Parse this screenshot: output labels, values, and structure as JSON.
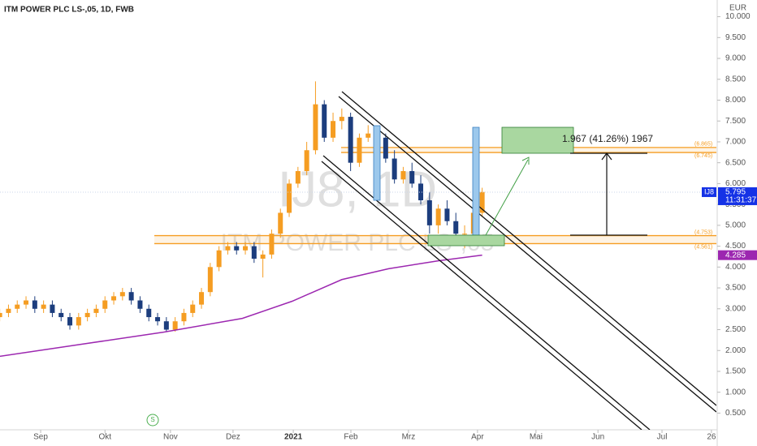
{
  "chart_data": {
    "type": "candlestick",
    "title": "ITM POWER PLC LS-,05, 1D, FWB",
    "currency": "EUR",
    "watermark": [
      "IJ8, 1D",
      "ITM POWER PLC LS-,05"
    ],
    "x": [
      -14,
      -11,
      -8,
      -5,
      -2,
      1,
      4,
      7,
      10,
      13,
      16,
      19,
      22,
      25,
      28,
      31,
      34,
      37,
      40,
      43,
      46,
      49,
      52,
      55,
      58,
      61,
      64,
      67,
      70,
      73,
      76,
      79,
      82,
      85,
      88,
      91,
      94,
      97,
      100,
      103,
      106,
      109,
      112,
      115,
      118,
      121,
      124,
      127,
      130,
      133,
      136,
      139,
      142,
      145,
      148,
      151
    ],
    "open": [
      2.8,
      2.9,
      3.0,
      3.1,
      3.2,
      3.0,
      3.1,
      2.9,
      2.8,
      2.6,
      2.8,
      2.9,
      3.0,
      3.2,
      3.3,
      3.4,
      3.2,
      3.0,
      2.8,
      2.7,
      2.5,
      2.7,
      2.9,
      3.1,
      3.4,
      4.0,
      4.4,
      4.5,
      4.4,
      4.5,
      4.2,
      4.3,
      4.8,
      5.3,
      6.0,
      6.3,
      6.8,
      7.9,
      7.1,
      7.5,
      7.6,
      6.5,
      7.1,
      7.2,
      7.1,
      6.6,
      6.1,
      6.3,
      6.0,
      5.6,
      5.0,
      5.4,
      5.1,
      4.8,
      4.8,
      5.3
    ],
    "high": [
      3.0,
      3.1,
      3.2,
      3.3,
      3.3,
      3.2,
      3.2,
      3.0,
      2.9,
      2.9,
      3.0,
      3.1,
      3.3,
      3.4,
      3.5,
      3.5,
      3.3,
      3.1,
      2.9,
      2.8,
      2.8,
      3.0,
      3.2,
      3.5,
      4.1,
      4.5,
      4.6,
      4.6,
      4.6,
      4.6,
      4.4,
      4.9,
      5.4,
      6.1,
      6.4,
      7.0,
      8.45,
      8.0,
      7.7,
      7.8,
      7.7,
      7.2,
      7.4,
      7.3,
      7.2,
      6.8,
      6.4,
      6.5,
      6.2,
      5.8,
      5.5,
      5.6,
      5.3,
      5.0,
      5.4,
      5.9
    ],
    "low": [
      2.7,
      2.8,
      2.9,
      3.0,
      2.9,
      2.9,
      2.8,
      2.7,
      2.5,
      2.5,
      2.7,
      2.8,
      2.9,
      3.1,
      3.2,
      3.1,
      2.9,
      2.7,
      2.6,
      2.45,
      2.45,
      2.6,
      2.8,
      3.0,
      3.3,
      3.9,
      4.3,
      4.3,
      4.3,
      4.1,
      3.75,
      4.2,
      4.7,
      5.2,
      5.9,
      6.2,
      6.7,
      7.0,
      7.0,
      7.3,
      6.3,
      6.4,
      7.0,
      6.9,
      6.5,
      6.0,
      6.0,
      5.9,
      5.5,
      4.8,
      4.8,
      5.0,
      4.7,
      4.45,
      4.7,
      5.2
    ],
    "close": [
      2.9,
      3.0,
      3.1,
      3.2,
      3.0,
      3.1,
      2.9,
      2.8,
      2.6,
      2.8,
      2.9,
      3.0,
      3.2,
      3.3,
      3.4,
      3.2,
      3.0,
      2.8,
      2.7,
      2.5,
      2.7,
      2.9,
      3.1,
      3.4,
      4.0,
      4.4,
      4.5,
      4.4,
      4.5,
      4.2,
      4.3,
      4.8,
      5.3,
      6.0,
      6.3,
      6.8,
      7.9,
      7.1,
      7.5,
      7.6,
      6.5,
      7.1,
      7.2,
      7.1,
      6.6,
      6.1,
      6.3,
      6.0,
      5.6,
      5.0,
      5.4,
      5.1,
      4.8,
      4.8,
      5.3,
      5.8
    ],
    "up_color": "#f59d22",
    "down_color": "#1c3d7d",
    "moving_average": {
      "color": "#9c27b0",
      "x": [
        -14,
        14,
        42,
        69,
        86,
        103,
        119,
        136,
        151
      ],
      "values": [
        1.86,
        2.15,
        2.44,
        2.77,
        3.18,
        3.7,
        3.96,
        4.15,
        4.285
      ]
    },
    "levels": [
      {
        "value": 6.865,
        "label": "(6.865)"
      },
      {
        "value": 6.745,
        "label": "(6.745)"
      },
      {
        "value": 4.753,
        "label": "(4.753)"
      },
      {
        "value": 4.561,
        "label": "(4.561)"
      }
    ],
    "level_color": "#f59d22",
    "last_price": {
      "symbol": "IJ8",
      "value": 5.795,
      "time": "11:31:37"
    },
    "ma_price": 4.285,
    "measure_label": "1.967 (41.26%) 1967",
    "logo": "S",
    "xlim": [
      -13.9,
      231.1
    ],
    "ylim": [
      0.1,
      10.4
    ],
    "xticks": [
      {
        "value": 0,
        "label": "Sep"
      },
      {
        "value": 22,
        "label": "Okt"
      },
      {
        "value": 44.4,
        "label": "Nov"
      },
      {
        "value": 65.8,
        "label": "Dez"
      },
      {
        "value": 86.4,
        "label": "2021"
      },
      {
        "value": 106.1,
        "label": "Feb"
      },
      {
        "value": 125.8,
        "label": "Mrz"
      },
      {
        "value": 149.4,
        "label": "Apr"
      },
      {
        "value": 169.4,
        "label": "Mai"
      },
      {
        "value": 190.6,
        "label": "Jun"
      },
      {
        "value": 212.5,
        "label": "Jul"
      },
      {
        "value": 229.4,
        "label": "26"
      }
    ],
    "yticks": [
      {
        "value": 0.5,
        "label": "0.500"
      },
      {
        "value": 1,
        "label": "1.000"
      },
      {
        "value": 1.5,
        "label": "1.500"
      },
      {
        "value": 2,
        "label": "2.000"
      },
      {
        "value": 2.5,
        "label": "2.500"
      },
      {
        "value": 3,
        "label": "3.000"
      },
      {
        "value": 3.5,
        "label": "3.500"
      },
      {
        "value": 4,
        "label": "4.000"
      },
      {
        "value": 4.5,
        "label": "4.500"
      },
      {
        "value": 5,
        "label": "5.000"
      },
      {
        "value": 5.5,
        "label": "5.500"
      },
      {
        "value": 6,
        "label": "6.000"
      },
      {
        "value": 6.5,
        "label": "6.500"
      },
      {
        "value": 7,
        "label": "7.000"
      },
      {
        "value": 7.5,
        "label": "7.500"
      },
      {
        "value": 8,
        "label": "8.000"
      },
      {
        "value": 8.5,
        "label": "8.500"
      },
      {
        "value": 9,
        "label": "9.000"
      },
      {
        "value": 9.5,
        "label": "9.500"
      },
      {
        "value": 10,
        "label": "10.000"
      }
    ]
  }
}
